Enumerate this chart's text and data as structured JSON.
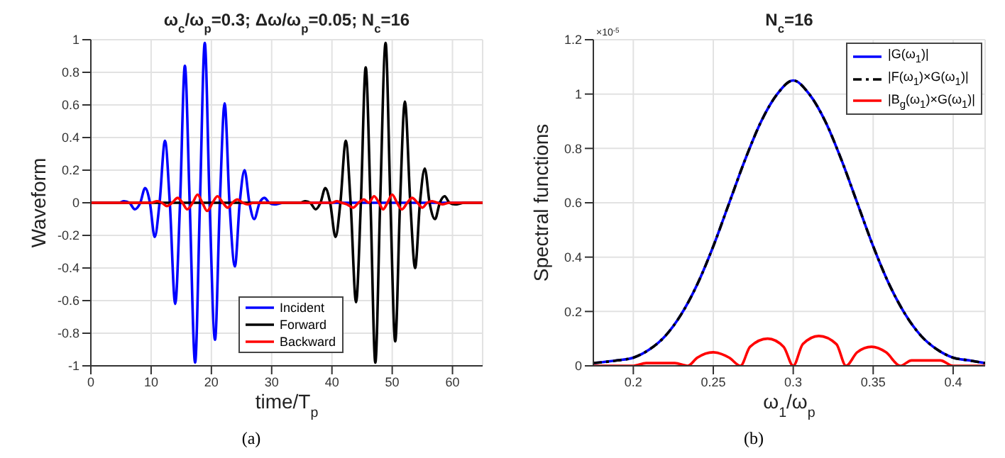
{
  "chart_data": [
    {
      "type": "line",
      "title": "ω$_{c}$/ω$_{p}$=0.3; Δω/ω$_{p}$=0.05; N$_{c}$=16",
      "xlabel": "time/T$_{p}$",
      "ylabel": "Waveform",
      "xlim": [
        0,
        65
      ],
      "xticks": [
        0,
        10,
        20,
        30,
        40,
        50,
        60
      ],
      "ylim": [
        -1,
        1
      ],
      "yticks": [
        -1,
        -0.8,
        -0.6,
        -0.4,
        -0.2,
        0,
        0.2,
        0.4,
        0.6,
        0.8,
        1
      ],
      "grid": true,
      "legend": "bottom",
      "marker": "none",
      "annotations": [
        "(a)"
      ],
      "series": [
        {
          "name": "Incident",
          "color": "#0000ff",
          "line_style": "solid",
          "x": [
            0,
            3,
            4.7,
            5.5,
            6.4,
            7.3,
            8.2,
            9,
            9.8,
            10.6,
            11.4,
            12.3,
            13.1,
            14,
            14.8,
            15.6,
            16.4,
            17.3,
            18.1,
            18.9,
            19.7,
            20.6,
            21.4,
            22.2,
            23,
            23.9,
            24.7,
            25.5,
            26.3,
            27.1,
            28,
            28.8,
            29.6,
            30.4,
            32,
            65
          ],
          "values": [
            0,
            0,
            0,
            0.01,
            0,
            -0.04,
            0,
            0.09,
            0,
            -0.21,
            0,
            0.38,
            0,
            -0.62,
            0,
            0.84,
            0,
            -0.98,
            0,
            0.98,
            0,
            -0.84,
            0,
            0.61,
            0,
            -0.39,
            0,
            0.2,
            0,
            -0.1,
            0,
            0.03,
            0,
            -0.01,
            0,
            0
          ]
        },
        {
          "name": "Forward",
          "color": "#000000",
          "line_style": "solid",
          "x": [
            0,
            33,
            34.7,
            35.6,
            36.4,
            37.3,
            38.1,
            38.9,
            39.7,
            40.6,
            41.4,
            42.3,
            43.1,
            44,
            44.8,
            45.6,
            46.4,
            47.2,
            48,
            48.9,
            49.7,
            50.5,
            51.3,
            52.1,
            53,
            53.8,
            54.6,
            55.4,
            56.2,
            57.1,
            57.9,
            58.7,
            59.5,
            60.4,
            62,
            65
          ],
          "values": [
            0,
            0,
            0,
            0.01,
            0,
            -0.04,
            0,
            0.09,
            0,
            -0.21,
            0,
            0.38,
            0,
            -0.61,
            0,
            0.83,
            0,
            -0.98,
            0,
            0.98,
            0,
            -0.85,
            0,
            0.62,
            0,
            -0.4,
            0,
            0.21,
            0,
            -0.1,
            0,
            0.04,
            0,
            -0.01,
            0,
            0
          ]
        },
        {
          "name": "Backward",
          "color": "#ff0000",
          "line_style": "solid",
          "x": [
            0,
            10,
            11,
            11.8,
            12.6,
            13.5,
            14.4,
            15.2,
            16,
            16.9,
            17.7,
            18.5,
            19.3,
            20.2,
            21,
            21.9,
            22.7,
            23.5,
            24.3,
            25.2,
            26,
            27,
            40,
            40.8,
            41.6,
            42.5,
            43.5,
            44.4,
            45.3,
            46.1,
            47,
            47.8,
            48.5,
            49.2,
            50,
            50.8,
            51.6,
            52.5,
            53.3,
            54.2,
            55,
            55.8,
            56.6,
            57.5,
            58.3,
            59.5,
            65
          ],
          "values": [
            0,
            0,
            0.01,
            0,
            -0.02,
            0,
            0.03,
            0,
            -0.04,
            0,
            0.05,
            0,
            -0.05,
            0,
            0.04,
            0,
            -0.03,
            0,
            0.02,
            0,
            -0.01,
            0,
            0,
            0.01,
            0,
            -0.01,
            -0.03,
            0,
            0.02,
            0,
            0.04,
            0,
            -0.04,
            0,
            0.05,
            0,
            -0.04,
            0,
            0.03,
            0,
            -0.03,
            0,
            0.01,
            0,
            -0.01,
            0,
            0
          ]
        }
      ]
    },
    {
      "type": "line",
      "title": "N$_{c}$=16",
      "xlabel": "ω$_{1}$/ω$_{p}$",
      "ylabel": "Spectral functions",
      "xlim": [
        0.175,
        0.42
      ],
      "xticks": [
        0.2,
        0.25,
        0.3,
        0.35,
        0.4
      ],
      "ylim": [
        0,
        1.2
      ],
      "yticks": [
        0,
        0.2,
        0.4,
        0.6,
        0.8,
        1,
        1.2
      ],
      "grid": true,
      "legend": "top right",
      "marker": "none",
      "annotations": [
        "×10$^{-5}$",
        "(b)"
      ],
      "series": [
        {
          "name": "|G(ω$_{1}$)|",
          "color": "#0000ff",
          "line_style": "solid",
          "x": [
            0.175,
            0.19,
            0.2,
            0.21,
            0.22,
            0.23,
            0.24,
            0.25,
            0.26,
            0.27,
            0.28,
            0.29,
            0.3,
            0.31,
            0.32,
            0.33,
            0.34,
            0.35,
            0.36,
            0.37,
            0.38,
            0.39,
            0.4,
            0.41,
            0.42
          ],
          "values": [
            0.01,
            0.02,
            0.03,
            0.06,
            0.11,
            0.19,
            0.3,
            0.44,
            0.6,
            0.76,
            0.9,
            1,
            1.05,
            1,
            0.9,
            0.76,
            0.6,
            0.44,
            0.3,
            0.19,
            0.11,
            0.06,
            0.03,
            0.02,
            0.01
          ]
        },
        {
          "name": "|F(ω$_{1}$)×G(ω$_{1}$)|",
          "color": "#000000",
          "line_style": "dashed",
          "x": [
            0.175,
            0.19,
            0.2,
            0.21,
            0.22,
            0.23,
            0.24,
            0.25,
            0.26,
            0.27,
            0.28,
            0.29,
            0.3,
            0.31,
            0.32,
            0.33,
            0.34,
            0.35,
            0.36,
            0.37,
            0.38,
            0.39,
            0.4,
            0.41,
            0.42
          ],
          "values": [
            0.01,
            0.02,
            0.03,
            0.06,
            0.11,
            0.19,
            0.3,
            0.44,
            0.6,
            0.76,
            0.9,
            1,
            1.05,
            1,
            0.9,
            0.76,
            0.6,
            0.44,
            0.3,
            0.19,
            0.11,
            0.06,
            0.03,
            0.02,
            0.01
          ]
        },
        {
          "name": "|B$_{g}$(ω$_{1}$)×G(ω$_{1}$)|",
          "color": "#ff0000",
          "line_style": "solid",
          "x": [
            0.175,
            0.19,
            0.2,
            0.208,
            0.217,
            0.226,
            0.234,
            0.24,
            0.25,
            0.26,
            0.267,
            0.273,
            0.284,
            0.294,
            0.3,
            0.306,
            0.316,
            0.327,
            0.333,
            0.34,
            0.349,
            0.358,
            0.367,
            0.374,
            0.383,
            0.392,
            0.4,
            0.41,
            0.42
          ],
          "values": [
            0,
            0,
            0,
            0.01,
            0.01,
            0.01,
            0,
            0.03,
            0.05,
            0.03,
            0,
            0.07,
            0.1,
            0.07,
            0,
            0.08,
            0.11,
            0.08,
            0,
            0.05,
            0.07,
            0.05,
            0,
            0.02,
            0.02,
            0.02,
            0,
            0,
            0
          ]
        }
      ]
    }
  ]
}
